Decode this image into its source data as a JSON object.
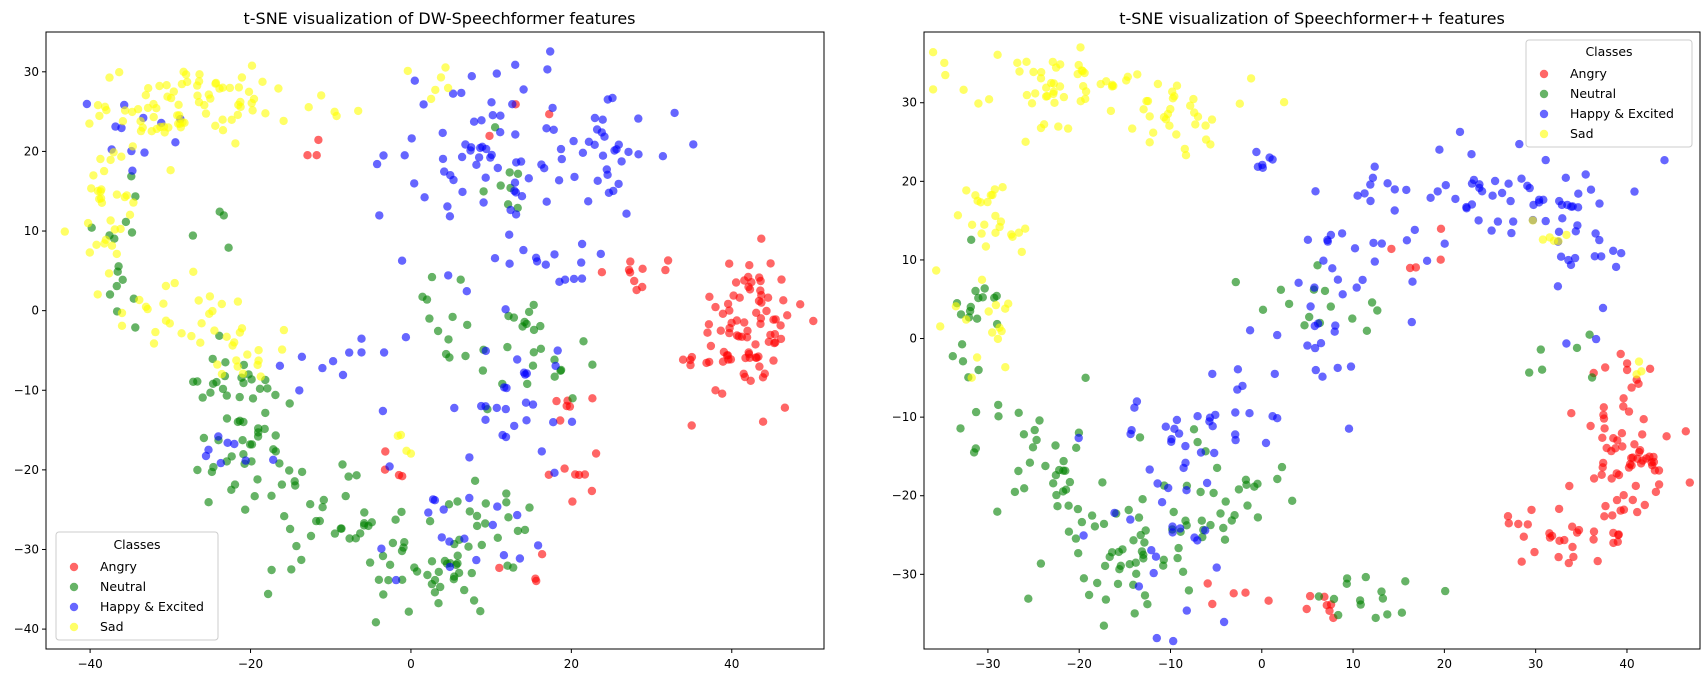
{
  "chart_data": [
    {
      "type": "scatter",
      "title": "t-SNE visualization of DW-Speechformer features",
      "xlabel": "",
      "ylabel": "",
      "xlim": [
        -45.5,
        51.5
      ],
      "ylim": [
        -42.5,
        35
      ],
      "xticks": [
        -40,
        -20,
        0,
        20,
        40
      ],
      "yticks": [
        -40,
        -30,
        -20,
        -10,
        0,
        10,
        20,
        30
      ],
      "legend": {
        "title": "Classes",
        "position": "lower-left"
      },
      "series": [
        {
          "name": "Angry",
          "color": "#ff0000",
          "clusters": [
            {
              "cx": 42,
              "cy": -2,
              "sx": 3.5,
              "sy": 4.5,
              "n": 85
            },
            {
              "cx": 28,
              "cy": 5,
              "sx": 3,
              "sy": 1,
              "n": 10
            },
            {
              "cx": 20,
              "cy": -12,
              "sx": 1.5,
              "sy": 1.5,
              "n": 6
            },
            {
              "cx": 22,
              "cy": -21,
              "sx": 2,
              "sy": 1.5,
              "n": 8
            },
            {
              "cx": 14,
              "cy": -33,
              "sx": 1.5,
              "sy": 1.5,
              "n": 4
            },
            {
              "cx": -12,
              "cy": 19,
              "sx": 0.8,
              "sy": 1.2,
              "n": 3
            },
            {
              "cx": 0,
              "cy": -20,
              "sx": 2,
              "sy": 1.5,
              "n": 4
            },
            {
              "cx": 15,
              "cy": 25,
              "sx": 2,
              "sy": 1.5,
              "n": 3
            },
            {
              "cx": 34,
              "cy": -6,
              "sx": 1,
              "sy": 1,
              "n": 3
            }
          ]
        },
        {
          "name": "Neutral",
          "color": "#008000",
          "clusters": [
            {
              "cx": -22,
              "cy": -10,
              "sx": 3.5,
              "sy": 2.5,
              "n": 30
            },
            {
              "cx": -20,
              "cy": -20,
              "sx": 3,
              "sy": 4,
              "n": 35
            },
            {
              "cx": -10,
              "cy": -27,
              "sx": 4,
              "sy": 3,
              "n": 25
            },
            {
              "cx": 2,
              "cy": -33,
              "sx": 5,
              "sy": 3,
              "n": 40
            },
            {
              "cx": 10,
              "cy": -28,
              "sx": 3,
              "sy": 3,
              "n": 20
            },
            {
              "cx": 15,
              "cy": -5,
              "sx": 3.5,
              "sy": 4,
              "n": 25
            },
            {
              "cx": -35,
              "cy": 8,
              "sx": 3,
              "sy": 5,
              "n": 15
            },
            {
              "cx": 5,
              "cy": 0,
              "sx": 5,
              "sy": 4,
              "n": 12
            },
            {
              "cx": 12,
              "cy": 17,
              "sx": 2,
              "sy": 3,
              "n": 8
            },
            {
              "cx": -25,
              "cy": 10,
              "sx": 1.5,
              "sy": 1.5,
              "n": 4
            }
          ]
        },
        {
          "name": "Happy & Excited",
          "color": "#0000ff",
          "clusters": [
            {
              "cx": 10,
              "cy": 20,
              "sx": 6,
              "sy": 6,
              "n": 70
            },
            {
              "cx": 25,
              "cy": 20,
              "sx": 4,
              "sy": 3,
              "n": 30
            },
            {
              "cx": 13,
              "cy": -12,
              "sx": 3.5,
              "sy": 4,
              "n": 25
            },
            {
              "cx": 7,
              "cy": -27,
              "sx": 5,
              "sy": 4,
              "n": 20
            },
            {
              "cx": -10,
              "cy": -6,
              "sx": 4,
              "sy": 3,
              "n": 12
            },
            {
              "cx": -35,
              "cy": 23,
              "sx": 4,
              "sy": 2.5,
              "n": 12
            },
            {
              "cx": 17,
              "cy": 5,
              "sx": 6,
              "sy": 2,
              "n": 15
            },
            {
              "cx": -22,
              "cy": -17,
              "sx": 3,
              "sy": 2,
              "n": 8
            }
          ]
        },
        {
          "name": "Sad",
          "color": "#ffff00",
          "clusters": [
            {
              "cx": -32,
              "cy": 25,
              "sx": 4,
              "sy": 2.5,
              "n": 45
            },
            {
              "cx": -22,
              "cy": 27,
              "sx": 4,
              "sy": 2,
              "n": 30
            },
            {
              "cx": -38,
              "cy": 12,
              "sx": 2,
              "sy": 6,
              "n": 35
            },
            {
              "cx": -28,
              "cy": 0,
              "sx": 4,
              "sy": 3,
              "n": 25
            },
            {
              "cx": -20,
              "cy": -5,
              "sx": 3,
              "sy": 2,
              "n": 15
            },
            {
              "cx": 4,
              "cy": 29,
              "sx": 1.5,
              "sy": 1.2,
              "n": 6
            },
            {
              "cx": -12,
              "cy": 25,
              "sx": 3,
              "sy": 1.5,
              "n": 6
            },
            {
              "cx": -1,
              "cy": -17,
              "sx": 1.5,
              "sy": 1.5,
              "n": 4
            }
          ]
        }
      ]
    },
    {
      "type": "scatter",
      "title": "t-SNE visualization of Speechformer++ features",
      "xlabel": "",
      "ylabel": "",
      "xlim": [
        -37,
        48
      ],
      "ylim": [
        -39.5,
        39
      ],
      "xticks": [
        -30,
        -20,
        -10,
        0,
        10,
        20,
        30,
        40
      ],
      "yticks": [
        -30,
        -20,
        -10,
        0,
        10,
        20,
        30
      ],
      "legend": {
        "title": "Classes",
        "position": "upper-right"
      },
      "series": [
        {
          "name": "Angry",
          "color": "#ff0000",
          "clusters": [
            {
              "cx": 40,
              "cy": -15,
              "sx": 2.5,
              "sy": 4.5,
              "n": 60
            },
            {
              "cx": 33,
              "cy": -25,
              "sx": 4,
              "sy": 2,
              "n": 30
            },
            {
              "cx": 40,
              "cy": -5,
              "sx": 1.5,
              "sy": 2,
              "n": 10
            },
            {
              "cx": 5,
              "cy": -33,
              "sx": 3,
              "sy": 1,
              "n": 8
            },
            {
              "cx": -5,
              "cy": -32,
              "sx": 2,
              "sy": 1,
              "n": 4
            },
            {
              "cx": 15,
              "cy": 11,
              "sx": 4,
              "sy": 2,
              "n": 5
            }
          ]
        },
        {
          "name": "Neutral",
          "color": "#008000",
          "clusters": [
            {
              "cx": -15,
              "cy": -25,
              "sx": 5,
              "sy": 5,
              "n": 60
            },
            {
              "cx": -25,
              "cy": -15,
              "sx": 4,
              "sy": 4,
              "n": 30
            },
            {
              "cx": -3,
              "cy": -20,
              "sx": 4,
              "sy": 4,
              "n": 25
            },
            {
              "cx": 10,
              "cy": -33,
              "sx": 3,
              "sy": 1.5,
              "n": 15
            },
            {
              "cx": -31,
              "cy": 0,
              "sx": 1.5,
              "sy": 6,
              "n": 20
            },
            {
              "cx": 7,
              "cy": 5,
              "sx": 4,
              "sy": 3,
              "n": 15
            },
            {
              "cx": 33,
              "cy": -2,
              "sx": 3,
              "sy": 2,
              "n": 6
            }
          ]
        },
        {
          "name": "Happy & Excited",
          "color": "#0000ff",
          "clusters": [
            {
              "cx": 25,
              "cy": 18,
              "sx": 7,
              "sy": 3,
              "n": 50
            },
            {
              "cx": 35,
              "cy": 10,
              "sx": 2.5,
              "sy": 6,
              "n": 30
            },
            {
              "cx": 10,
              "cy": 10,
              "sx": 4,
              "sy": 5,
              "n": 25
            },
            {
              "cx": 3,
              "cy": -3,
              "sx": 3,
              "sy": 3,
              "n": 20
            },
            {
              "cx": -8,
              "cy": -12,
              "sx": 5,
              "sy": 3,
              "n": 25
            },
            {
              "cx": -10,
              "cy": -25,
              "sx": 5,
              "sy": 5,
              "n": 25
            },
            {
              "cx": 0,
              "cy": 22,
              "sx": 1.5,
              "sy": 2,
              "n": 6
            }
          ]
        },
        {
          "name": "Sad",
          "color": "#ffff00",
          "clusters": [
            {
              "cx": -22,
              "cy": 32,
              "sx": 6,
              "sy": 2.5,
              "n": 60
            },
            {
              "cx": -8,
              "cy": 28,
              "sx": 5,
              "sy": 2,
              "n": 25
            },
            {
              "cx": -29,
              "cy": 15,
              "sx": 2,
              "sy": 5,
              "n": 25
            },
            {
              "cx": -30,
              "cy": 0,
              "sx": 2,
              "sy": 5,
              "n": 15
            },
            {
              "cx": 33,
              "cy": 13,
              "sx": 2,
              "sy": 2,
              "n": 6
            },
            {
              "cx": 40,
              "cy": -5,
              "sx": 1,
              "sy": 1,
              "n": 3
            }
          ]
        }
      ]
    }
  ]
}
